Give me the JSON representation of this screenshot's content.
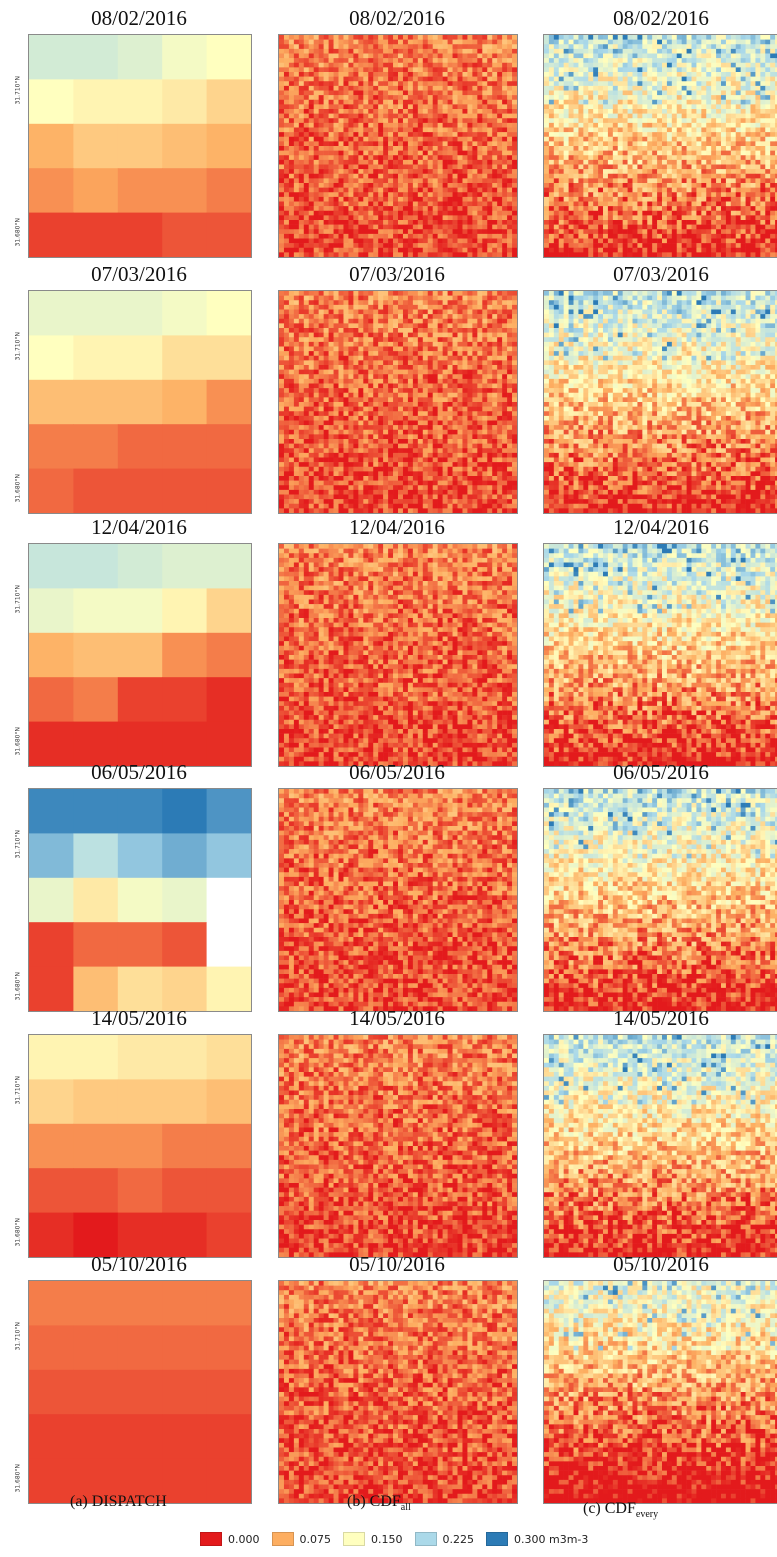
{
  "figure": {
    "rows": [
      {
        "date": "08/02/2016"
      },
      {
        "date": "07/03/2016"
      },
      {
        "date": "12/04/2016"
      },
      {
        "date": "06/05/2016"
      },
      {
        "date": "14/05/2016"
      },
      {
        "date": "05/10/2016"
      }
    ],
    "lat_top": "31.710°N",
    "lat_bottom": "31.680°N",
    "columns": {
      "a": "(a) DISPATCH",
      "b_main": "(b) CDF",
      "b_sub": "all",
      "c_main": "(c) CDF",
      "c_sub": "every"
    },
    "legend": [
      {
        "label": "0.000",
        "color": "#e31a1c"
      },
      {
        "label": "0.075",
        "color": "#fdae61"
      },
      {
        "label": "0.150",
        "color": "#ffffbf"
      },
      {
        "label": "0.225",
        "color": "#abd9e9"
      },
      {
        "label": "0.300 m3m-3",
        "color": "#2c7bb6"
      }
    ],
    "dispatch_values": [
      [
        [
          0.19,
          0.19,
          0.18,
          0.16,
          0.15
        ],
        [
          0.15,
          0.14,
          0.14,
          0.13,
          0.11
        ],
        [
          0.08,
          0.1,
          0.1,
          0.09,
          0.08
        ],
        [
          0.06,
          0.07,
          0.06,
          0.06,
          0.05
        ],
        [
          0.02,
          0.02,
          0.02,
          0.03,
          0.03
        ]
      ],
      [
        [
          0.17,
          0.17,
          0.17,
          0.16,
          0.15
        ],
        [
          0.15,
          0.14,
          0.14,
          0.12,
          0.12
        ],
        [
          0.09,
          0.09,
          0.09,
          0.08,
          0.06
        ],
        [
          0.05,
          0.05,
          0.04,
          0.04,
          0.04
        ],
        [
          0.04,
          0.03,
          0.03,
          0.03,
          0.03
        ]
      ],
      [
        [
          0.2,
          0.2,
          0.19,
          0.18,
          0.18
        ],
        [
          0.17,
          0.16,
          0.16,
          0.14,
          0.11
        ],
        [
          0.08,
          0.09,
          0.09,
          0.06,
          0.05
        ],
        [
          0.04,
          0.05,
          0.02,
          0.02,
          0.01
        ],
        [
          0.01,
          0.01,
          0.01,
          0.01,
          0.01
        ]
      ],
      [
        [
          0.29,
          0.29,
          0.29,
          0.3,
          0.28
        ],
        [
          0.25,
          0.21,
          0.24,
          0.26,
          0.24
        ],
        [
          0.17,
          0.13,
          0.16,
          0.17,
          null
        ],
        [
          0.02,
          0.04,
          0.04,
          0.03,
          null
        ],
        [
          0.02,
          0.09,
          0.12,
          0.11,
          0.14
        ]
      ],
      [
        [
          0.14,
          0.14,
          0.13,
          0.13,
          0.12
        ],
        [
          0.11,
          0.1,
          0.1,
          0.1,
          0.09
        ],
        [
          0.06,
          0.06,
          0.06,
          0.05,
          0.05
        ],
        [
          0.03,
          0.03,
          0.04,
          0.03,
          0.03
        ],
        [
          0.01,
          0.0,
          0.01,
          0.01,
          0.02
        ]
      ],
      [
        [
          0.05,
          0.05,
          0.05,
          0.05,
          0.05
        ],
        [
          0.04,
          0.04,
          0.04,
          0.04,
          0.04
        ],
        [
          0.03,
          0.03,
          0.03,
          0.03,
          0.03
        ],
        [
          0.02,
          0.02,
          0.02,
          0.02,
          0.02
        ],
        [
          0.02,
          0.02,
          0.02,
          0.02,
          0.02
        ]
      ]
    ]
  }
}
